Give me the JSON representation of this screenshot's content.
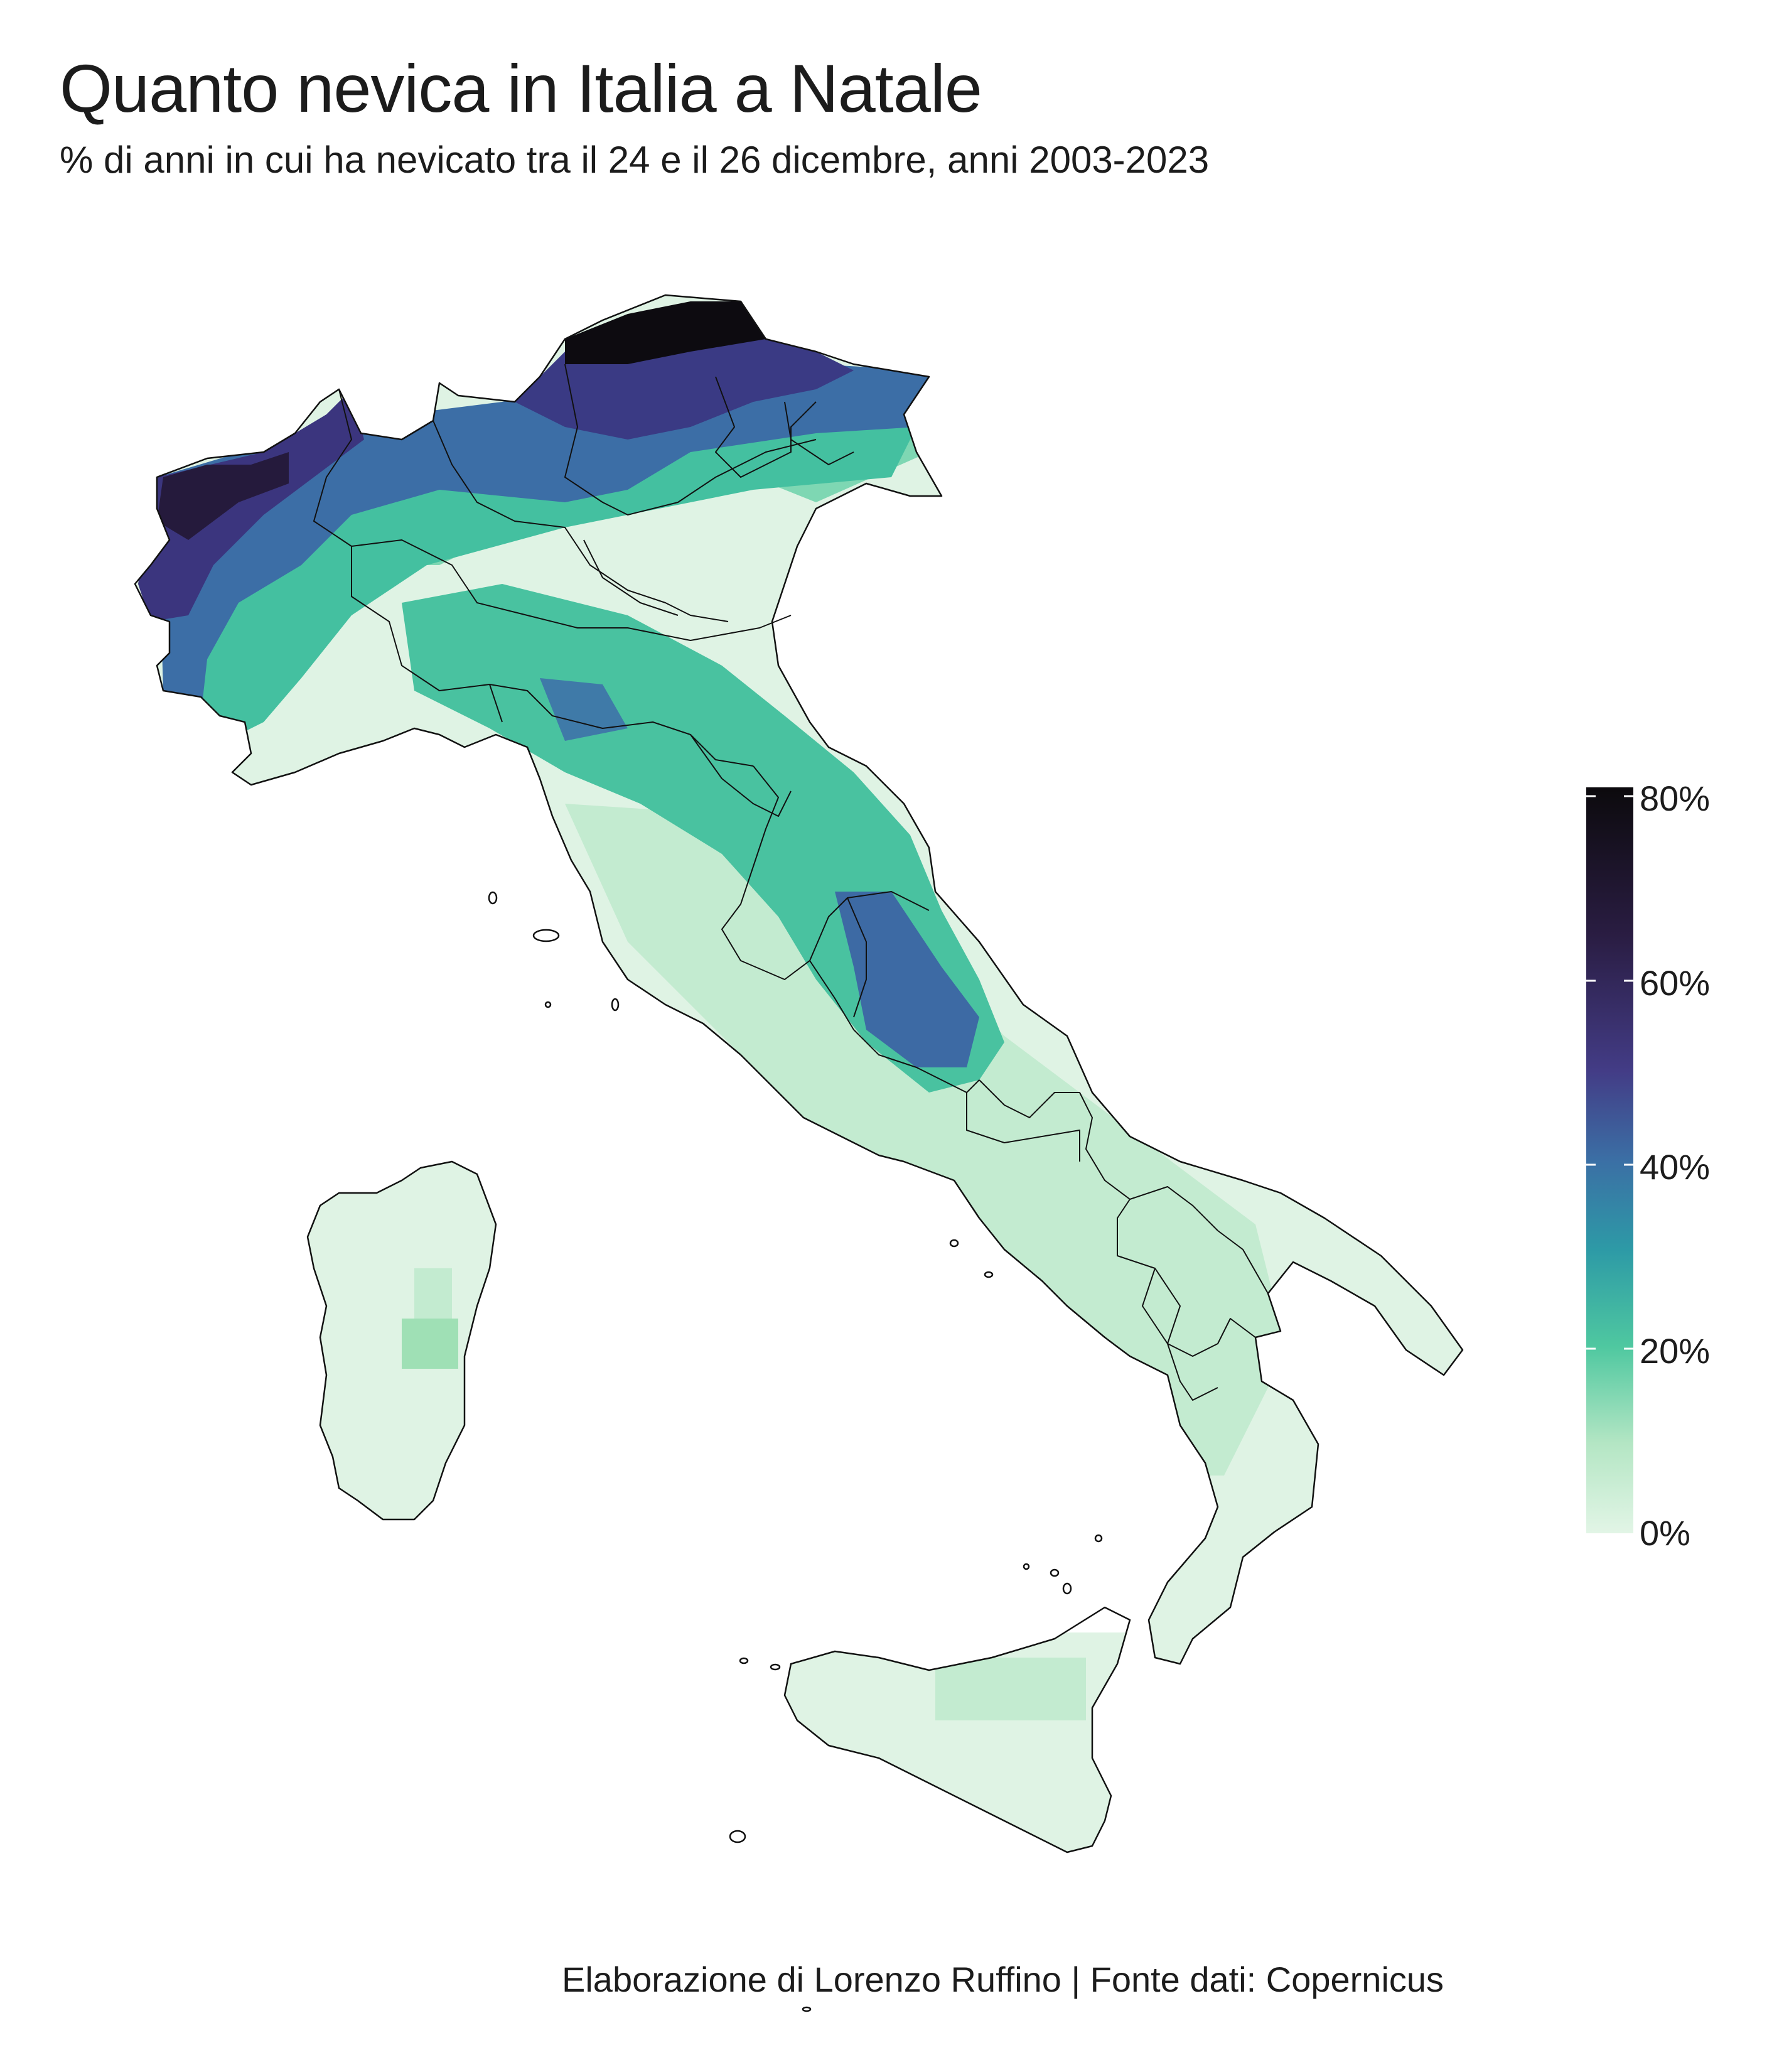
{
  "title": "Quanto nevica in Italia a Natale",
  "subtitle": "% di anni in cui ha nevicato tra il 24 e il 26 dicembre, anni 2003-2023",
  "caption": "Elaborazione di Lorenzo Ruffino | Fonte dati: Copernicus",
  "legend": {
    "ticks": [
      "80%",
      "60%",
      "40%",
      "20%",
      "0%"
    ],
    "min": 0,
    "max": 80,
    "colors": [
      "#e2f5e6",
      "#9fe0b5",
      "#4fc8a0",
      "#2d9aa6",
      "#3b6fa5",
      "#433c86",
      "#2a1d43",
      "#0c0a0d"
    ]
  },
  "map_colors": {
    "outline": "#111111",
    "snow_low": "#dff3e4",
    "snow_light": "#b9e8c8",
    "snow_mid": "#7ed7b3",
    "snow_teal": "#44c0a0",
    "snow_blue": "#3a78a6",
    "snow_deep": "#413d89",
    "snow_dark": "#241a3a",
    "snow_black": "#0b0a0d"
  }
}
